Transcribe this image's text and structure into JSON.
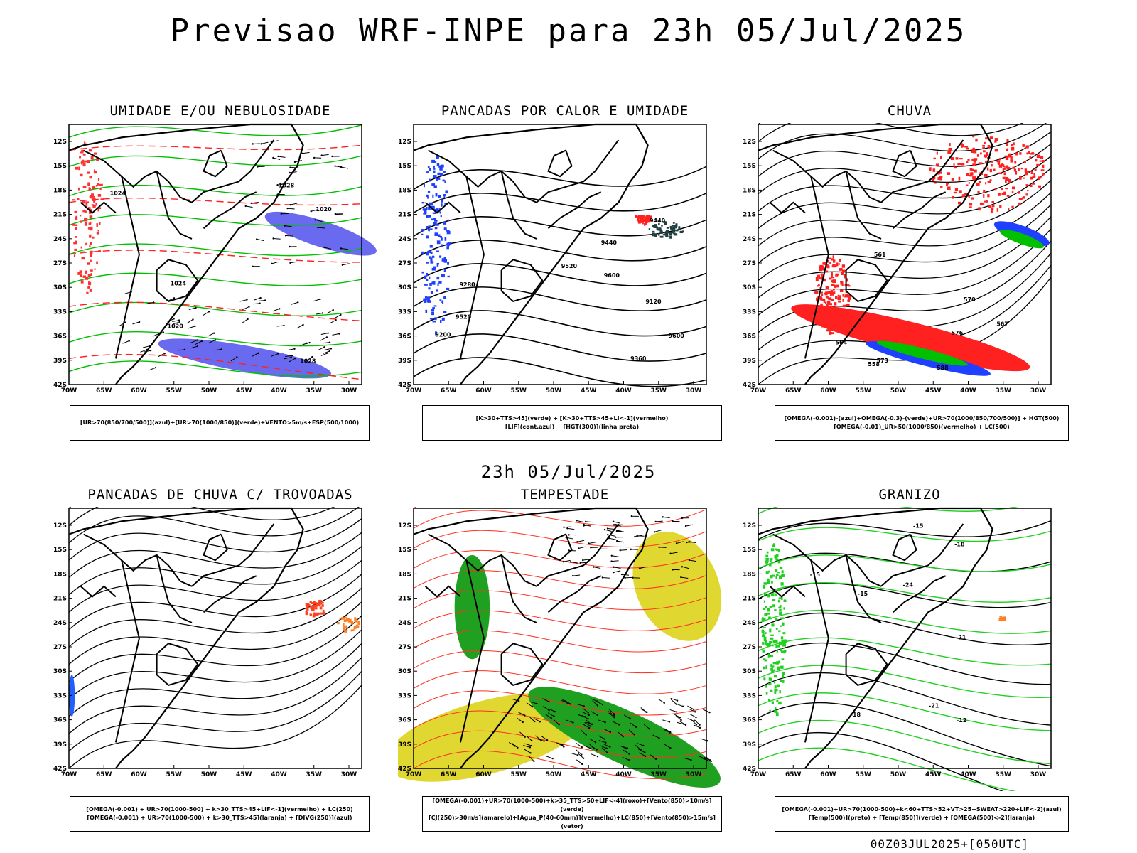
{
  "title": "Previsao WRF-INPE  para 23h 05/Jul/2025",
  "mid_title": "23h 05/Jul/2025",
  "footer": "00Z03JUL2025+[050UTC]",
  "axes": {
    "lat_labels": [
      "12S",
      "15S",
      "18S",
      "21S",
      "24S",
      "27S",
      "30S",
      "33S",
      "36S",
      "39S",
      "42S"
    ],
    "lon_labels": [
      "70W",
      "65W",
      "60W",
      "55W",
      "50W",
      "45W",
      "40W",
      "35W",
      "30W"
    ]
  },
  "panels": [
    {
      "id": "umidade",
      "title": "UMIDADE E/OU NEBULOSIDADE",
      "legend": [
        "[UR>70(850/700/500)](azul)+[UR>70(1000/850)](verde)+VENTO>5m/s+ESP(500/1000)"
      ],
      "contour_labels": [
        "1020",
        "1024",
        "1028",
        "1020",
        "1024",
        "1028"
      ],
      "fills": [
        "#6a6af0",
        "#00c000",
        "#ff2020"
      ]
    },
    {
      "id": "pancadas-calor",
      "title": "PANCADAS POR CALOR E UMIDADE",
      "legend": [
        "[K>30+TTS>45](verde) + [K>30+TTS>45+LI<-1](vermelho)",
        "[LIF](cont.azul) + [HGT(300)](linha preta)"
      ],
      "contour_labels": [
        "9600",
        "9600",
        "9520",
        "9440",
        "9280",
        "9200",
        "9120",
        "9520",
        "9440",
        "9360"
      ],
      "fills": [
        "#2040ff",
        "#ff2020",
        "#204040"
      ]
    },
    {
      "id": "chuva",
      "title": "CHUVA",
      "legend": [
        "[OMEGA(-0.001)-(azul)+OMEGA(-0.3)-(verde)+UR>70(1000/850/700/500)] + HGT(500)",
        "[OMEGA(-0.01)_UR>50(1000/850)(vermelho) + LC(500)"
      ],
      "contour_labels": [
        "588",
        "576",
        "573",
        "570",
        "567",
        "564",
        "561",
        "558"
      ],
      "fills": [
        "#ff2020",
        "#2040ff",
        "#00c000"
      ]
    },
    {
      "id": "pancadas-trovoadas",
      "title": "PANCADAS DE CHUVA C/ TROVOADAS",
      "legend": [
        "[OMEGA(-0.001) + UR>70(1000-500) + k>30_TTS>45+LIF<-1](vermelho) + LC(250)",
        "[OMEGA(-0.001) + UR>70(1000-500) + k>30_TTS>45](laranja) + [DIVG(250)](azul)"
      ],
      "contour_labels": [],
      "fills": [
        "#ff4020",
        "#ff8020",
        "#2060ff"
      ]
    },
    {
      "id": "tempestade",
      "title": "TEMPESTADE",
      "legend": [
        "[OMEGA(-0.001)+UR>70(1000-500)+k>35_TTS>50+LIF<-4](roxo)+[Vento(850)>10m/s](verde)",
        "[CJ(250)>30m/s](amarelo)+[Agua_P(40-60mm)](vermelho)+LC(850)+[Vento(850)>15m/s](vetor)"
      ],
      "contour_labels": [],
      "fills": [
        "#e0d830",
        "#20a020",
        "#ff3020"
      ]
    },
    {
      "id": "granizo",
      "title": "GRANIZO",
      "legend": [
        "[OMEGA(-0.001)+UR>70(1000-500)+k<60+TTS>52+VT>25+SWEAT>220+LIF<-2](azul)",
        "[Temp(500)](preto) + [Temp(850)](verde) + [OMEGA(500)<-2](laranja)"
      ],
      "contour_labels": [
        "-12",
        "-15",
        "-18",
        "-21",
        "-15",
        "-18",
        "-21",
        "-24",
        "-15"
      ],
      "fills": [
        "#20d020",
        "#ff8020"
      ]
    }
  ]
}
